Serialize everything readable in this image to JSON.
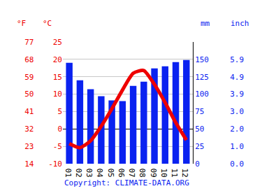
{
  "chart_data": {
    "type": "bar",
    "categories": [
      "01",
      "02",
      "03",
      "04",
      "05",
      "06",
      "07",
      "08",
      "09",
      "10",
      "11",
      "12"
    ],
    "series": [
      {
        "type": "bar",
        "axis": "y2",
        "color": "#0a22f0",
        "values": [
          145,
          120,
          107,
          97,
          91,
          90,
          112,
          118,
          137,
          140,
          146,
          149
        ]
      },
      {
        "type": "line",
        "color": "#ee0000",
        "values": [
          -4.2,
          -5.4,
          -3.4,
          0.8,
          5.8,
          11.2,
          16,
          16.8,
          12.8,
          7.6,
          1.8,
          -3.2
        ]
      }
    ],
    "y_label": "°C",
    "ylim": [
      -10,
      25
    ],
    "yticks": [
      -10,
      -5,
      0,
      5,
      10,
      15,
      20,
      25
    ],
    "y2_label": "mm",
    "y2lim": [
      0,
      175
    ],
    "y2ticks": [
      0,
      25,
      50,
      75,
      100,
      125,
      150
    ],
    "y3_label": "°F",
    "y3lim": [
      14,
      77
    ],
    "y3ticks": [
      14,
      23,
      32,
      41,
      50,
      59,
      68,
      77
    ],
    "y4_label": "inch",
    "y4lim": [
      0,
      6.89
    ],
    "y4ticks": [
      {
        "value": 0,
        "label": "0.0"
      },
      {
        "value": 0.984,
        "label": "1.0"
      },
      {
        "value": 1.969,
        "label": "2.0"
      },
      {
        "value": 2.953,
        "label": "3.0"
      },
      {
        "value": 3.937,
        "label": "3.9"
      },
      {
        "value": 4.921,
        "label": "4.9"
      },
      {
        "value": 5.906,
        "label": "5.9"
      }
    ],
    "annotations": [
      "Copyright: CLIMATE-DATA.ORG"
    ],
    "grid": true
  }
}
